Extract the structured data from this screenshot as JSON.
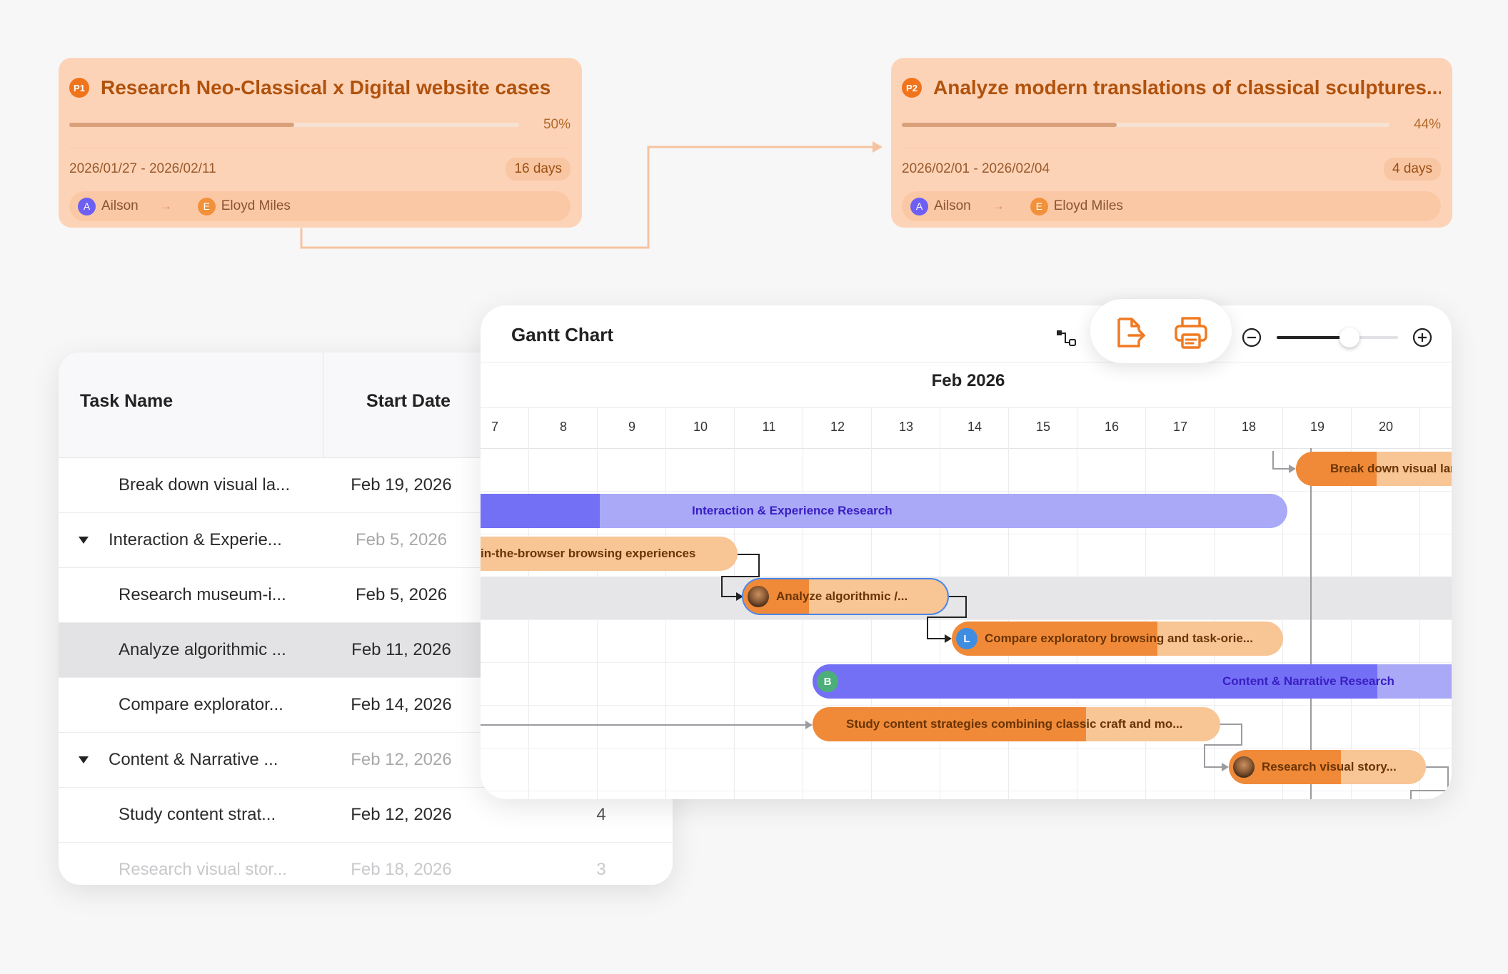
{
  "cards": [
    {
      "badge": "P1",
      "title": "Research Neo-Classical x Digital website cases",
      "progress_pct": 50,
      "progress_label": "50%",
      "date_range": "2026/01/27 - 2026/02/11",
      "duration": "16 days",
      "from_initial": "A",
      "from_name": "Ailson",
      "to_initial": "E",
      "to_name": "Eloyd Miles"
    },
    {
      "badge": "P2",
      "title": "Analyze modern translations of classical sculptures...",
      "progress_pct": 44,
      "progress_label": "44%",
      "date_range": "2026/02/01 - 2026/02/04",
      "duration": "4 days",
      "from_initial": "A",
      "from_name": "Ailson",
      "to_initial": "E",
      "to_name": "Eloyd Miles"
    }
  ],
  "table": {
    "headers": {
      "name": "Task Name",
      "start": "Start Date"
    },
    "rows": [
      {
        "name": "Break down visual la...",
        "start": "Feb 19, 2026",
        "dur": "",
        "group": false
      },
      {
        "name": "Interaction & Experie...",
        "start": "Feb 5, 2026",
        "dur": "",
        "group": true
      },
      {
        "name": "Research museum-i...",
        "start": "Feb 5, 2026",
        "dur": "",
        "group": false
      },
      {
        "name": "Analyze algorithmic ...",
        "start": "Feb 11, 2026",
        "dur": "",
        "group": false
      },
      {
        "name": "Compare explorator...",
        "start": "Feb 14, 2026",
        "dur": "",
        "group": false
      },
      {
        "name": "Content & Narrative ...",
        "start": "Feb 12, 2026",
        "dur": "",
        "group": true
      },
      {
        "name": "Study content strat...",
        "start": "Feb 12, 2026",
        "dur": "4",
        "group": false
      },
      {
        "name": "Research visual stor...",
        "start": "Feb 18, 2026",
        "dur": "3",
        "group": false
      }
    ]
  },
  "gantt": {
    "title": "Gantt Chart",
    "month": "Feb 2026",
    "days": [
      "7",
      "8",
      "9",
      "10",
      "11",
      "12",
      "13",
      "14",
      "15",
      "16",
      "17",
      "18",
      "19",
      "20"
    ],
    "bars": [
      {
        "label": "Break down visual lan",
        "color": "orange",
        "progress": 0.47
      },
      {
        "label": "Interaction & Experience Research",
        "color": "purple",
        "progress": 0.17
      },
      {
        "label": "in-the-browser browsing experiences",
        "color": "orange",
        "progress": 0.0
      },
      {
        "label": "Analyze algorithmic /...",
        "color": "orange",
        "progress": 0.32,
        "avatar": "photo"
      },
      {
        "label": "Compare exploratory browsing and task-orie...",
        "color": "orange",
        "progress": 0.62,
        "avatar": "L"
      },
      {
        "label": "Content & Narrative Research",
        "color": "purple",
        "progress": 0.86,
        "avatar": "B"
      },
      {
        "label": "Study content strategies combining classic craft and mo...",
        "color": "orange",
        "progress": 0.67
      },
      {
        "label": "Research visual story...",
        "color": "orange",
        "progress": 0.57,
        "avatar": "photo"
      }
    ]
  },
  "toolbar": {
    "icons": [
      "dependency-link-icon",
      "export-icon",
      "print-icon",
      "zoom-out-icon",
      "zoom-in-icon"
    ],
    "zoom_level": 0.6
  },
  "colors": {
    "accent_orange": "#f08a38",
    "accent_purple": "#7470f6",
    "card_bg": "#fdd3b8"
  }
}
